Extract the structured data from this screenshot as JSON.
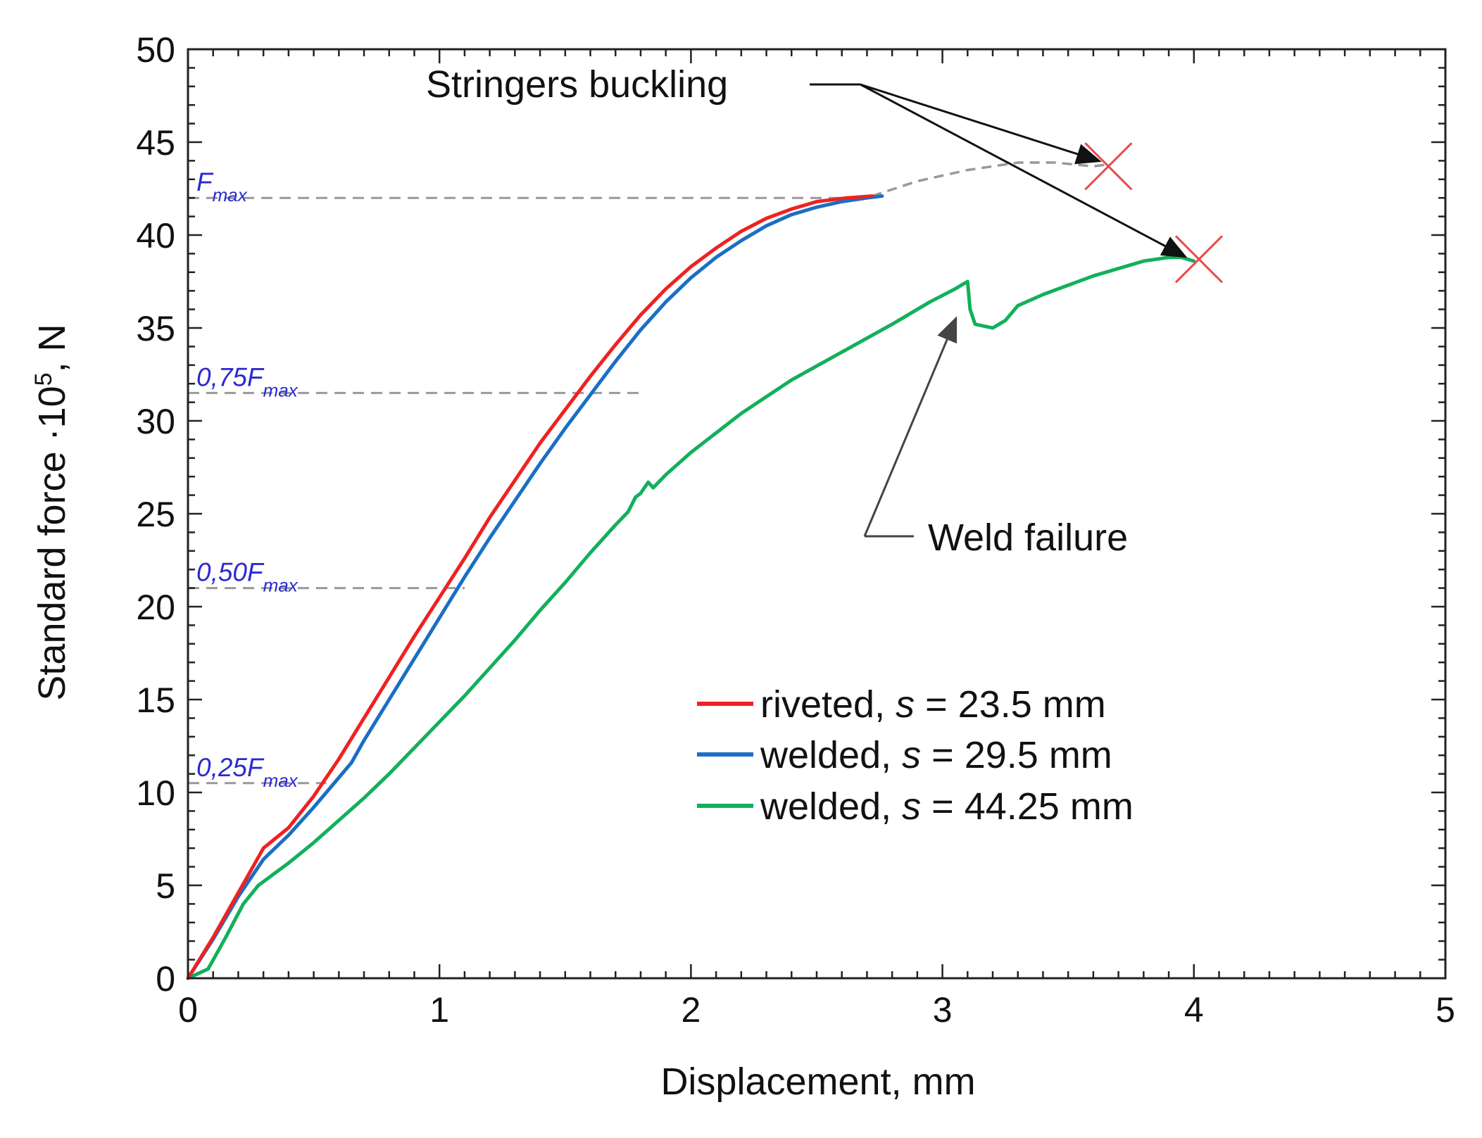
{
  "chart_data": {
    "type": "line",
    "title": "",
    "xlabel": "Displacement, mm",
    "ylabel_main": "Standard force ·10",
    "ylabel_sup": "5",
    "ylabel_tail": ", N",
    "xlim": [
      0,
      5
    ],
    "ylim": [
      0,
      50
    ],
    "x_ticks": [
      "0",
      "1",
      "2",
      "3",
      "4",
      "5"
    ],
    "y_ticks": [
      "0",
      "5",
      "10",
      "15",
      "20",
      "25",
      "30",
      "35",
      "40",
      "45",
      "50"
    ],
    "grid": false,
    "legend_position": "lower-right",
    "series": [
      {
        "name": "riveted, s = 23.5 mm",
        "legend_prefix": "riveted,",
        "legend_var": "s",
        "legend_value": "= 23.5 mm",
        "color": "#ee2222",
        "points": [
          [
            0,
            0
          ],
          [
            0.1,
            2.2
          ],
          [
            0.2,
            4.6
          ],
          [
            0.3,
            7.0
          ],
          [
            0.4,
            8.1
          ],
          [
            0.5,
            9.8
          ],
          [
            0.6,
            11.8
          ],
          [
            0.7,
            14.0
          ],
          [
            0.8,
            16.2
          ],
          [
            0.9,
            18.4
          ],
          [
            1.0,
            20.5
          ],
          [
            1.1,
            22.6
          ],
          [
            1.2,
            24.8
          ],
          [
            1.3,
            26.8
          ],
          [
            1.4,
            28.8
          ],
          [
            1.5,
            30.6
          ],
          [
            1.6,
            32.4
          ],
          [
            1.7,
            34.1
          ],
          [
            1.8,
            35.7
          ],
          [
            1.9,
            37.1
          ],
          [
            2.0,
            38.3
          ],
          [
            2.1,
            39.3
          ],
          [
            2.2,
            40.2
          ],
          [
            2.3,
            40.9
          ],
          [
            2.4,
            41.4
          ],
          [
            2.5,
            41.8
          ],
          [
            2.62,
            42.0
          ],
          [
            2.72,
            42.1
          ]
        ]
      },
      {
        "name": "welded, s = 29.5 mm",
        "legend_prefix": "welded,",
        "legend_var": "s",
        "legend_value": "= 29.5 mm",
        "color": "#1a6fc4",
        "points": [
          [
            0,
            0
          ],
          [
            0.1,
            2.1
          ],
          [
            0.2,
            4.4
          ],
          [
            0.3,
            6.4
          ],
          [
            0.4,
            7.7
          ],
          [
            0.5,
            9.2
          ],
          [
            0.6,
            10.8
          ],
          [
            0.65,
            11.6
          ],
          [
            0.7,
            12.8
          ],
          [
            0.8,
            15.0
          ],
          [
            0.9,
            17.2
          ],
          [
            1.0,
            19.4
          ],
          [
            1.1,
            21.6
          ],
          [
            1.2,
            23.7
          ],
          [
            1.3,
            25.7
          ],
          [
            1.4,
            27.7
          ],
          [
            1.5,
            29.6
          ],
          [
            1.6,
            31.4
          ],
          [
            1.7,
            33.2
          ],
          [
            1.8,
            34.9
          ],
          [
            1.9,
            36.4
          ],
          [
            2.0,
            37.7
          ],
          [
            2.1,
            38.8
          ],
          [
            2.2,
            39.7
          ],
          [
            2.3,
            40.5
          ],
          [
            2.4,
            41.1
          ],
          [
            2.5,
            41.5
          ],
          [
            2.6,
            41.8
          ],
          [
            2.7,
            42.0
          ],
          [
            2.76,
            42.1
          ]
        ]
      },
      {
        "name": "welded, s = 44.25 mm",
        "legend_prefix": "welded,",
        "legend_var": "s",
        "legend_value": "= 44.25 mm",
        "color": "#12b05a",
        "points": [
          [
            0,
            0
          ],
          [
            0.08,
            0.5
          ],
          [
            0.15,
            2.2
          ],
          [
            0.22,
            4.0
          ],
          [
            0.28,
            5.0
          ],
          [
            0.4,
            6.2
          ],
          [
            0.5,
            7.3
          ],
          [
            0.6,
            8.5
          ],
          [
            0.7,
            9.7
          ],
          [
            0.8,
            11.0
          ],
          [
            0.9,
            12.4
          ],
          [
            1.0,
            13.8
          ],
          [
            1.1,
            15.2
          ],
          [
            1.2,
            16.7
          ],
          [
            1.3,
            18.2
          ],
          [
            1.4,
            19.8
          ],
          [
            1.5,
            21.3
          ],
          [
            1.6,
            22.9
          ],
          [
            1.7,
            24.4
          ],
          [
            1.75,
            25.1
          ],
          [
            1.78,
            25.9
          ],
          [
            1.8,
            26.1
          ],
          [
            1.83,
            26.7
          ],
          [
            1.85,
            26.4
          ],
          [
            1.9,
            27.1
          ],
          [
            2.0,
            28.3
          ],
          [
            2.2,
            30.4
          ],
          [
            2.4,
            32.2
          ],
          [
            2.6,
            33.7
          ],
          [
            2.8,
            35.2
          ],
          [
            2.95,
            36.4
          ],
          [
            3.05,
            37.1
          ],
          [
            3.1,
            37.5
          ],
          [
            3.11,
            36.0
          ],
          [
            3.13,
            35.2
          ],
          [
            3.2,
            35.0
          ],
          [
            3.25,
            35.4
          ],
          [
            3.3,
            36.2
          ],
          [
            3.4,
            36.8
          ],
          [
            3.5,
            37.3
          ],
          [
            3.6,
            37.8
          ],
          [
            3.7,
            38.2
          ],
          [
            3.8,
            38.6
          ],
          [
            3.9,
            38.8
          ],
          [
            3.95,
            38.8
          ],
          [
            4.0,
            38.6
          ]
        ]
      }
    ],
    "buckling_extension": {
      "color": "#999999",
      "points": [
        [
          2.72,
          42.1
        ],
        [
          2.9,
          42.9
        ],
        [
          3.1,
          43.5
        ],
        [
          3.3,
          43.9
        ],
        [
          3.45,
          43.9
        ],
        [
          3.6,
          43.7
        ],
        [
          3.66,
          43.8
        ]
      ]
    },
    "reference_lines": [
      {
        "main": "F",
        "sub": "max",
        "value": 42,
        "x_end": 2.65
      },
      {
        "main": "0,75F",
        "sub": "max",
        "value": 31.5,
        "x_end": 1.8
      },
      {
        "main": "0,50F",
        "sub": "max",
        "value": 21,
        "x_end": 1.1
      },
      {
        "main": "0,25F",
        "sub": "max",
        "value": 10.5,
        "x_end": 0.55
      }
    ],
    "failure_markers": [
      {
        "x": 3.66,
        "y": 43.7,
        "color": "#e84a4a"
      },
      {
        "x": 4.02,
        "y": 38.7,
        "color": "#e84a4a"
      }
    ],
    "annotations": [
      {
        "text": "Stringers buckling"
      },
      {
        "text": "Weld failure"
      }
    ]
  }
}
